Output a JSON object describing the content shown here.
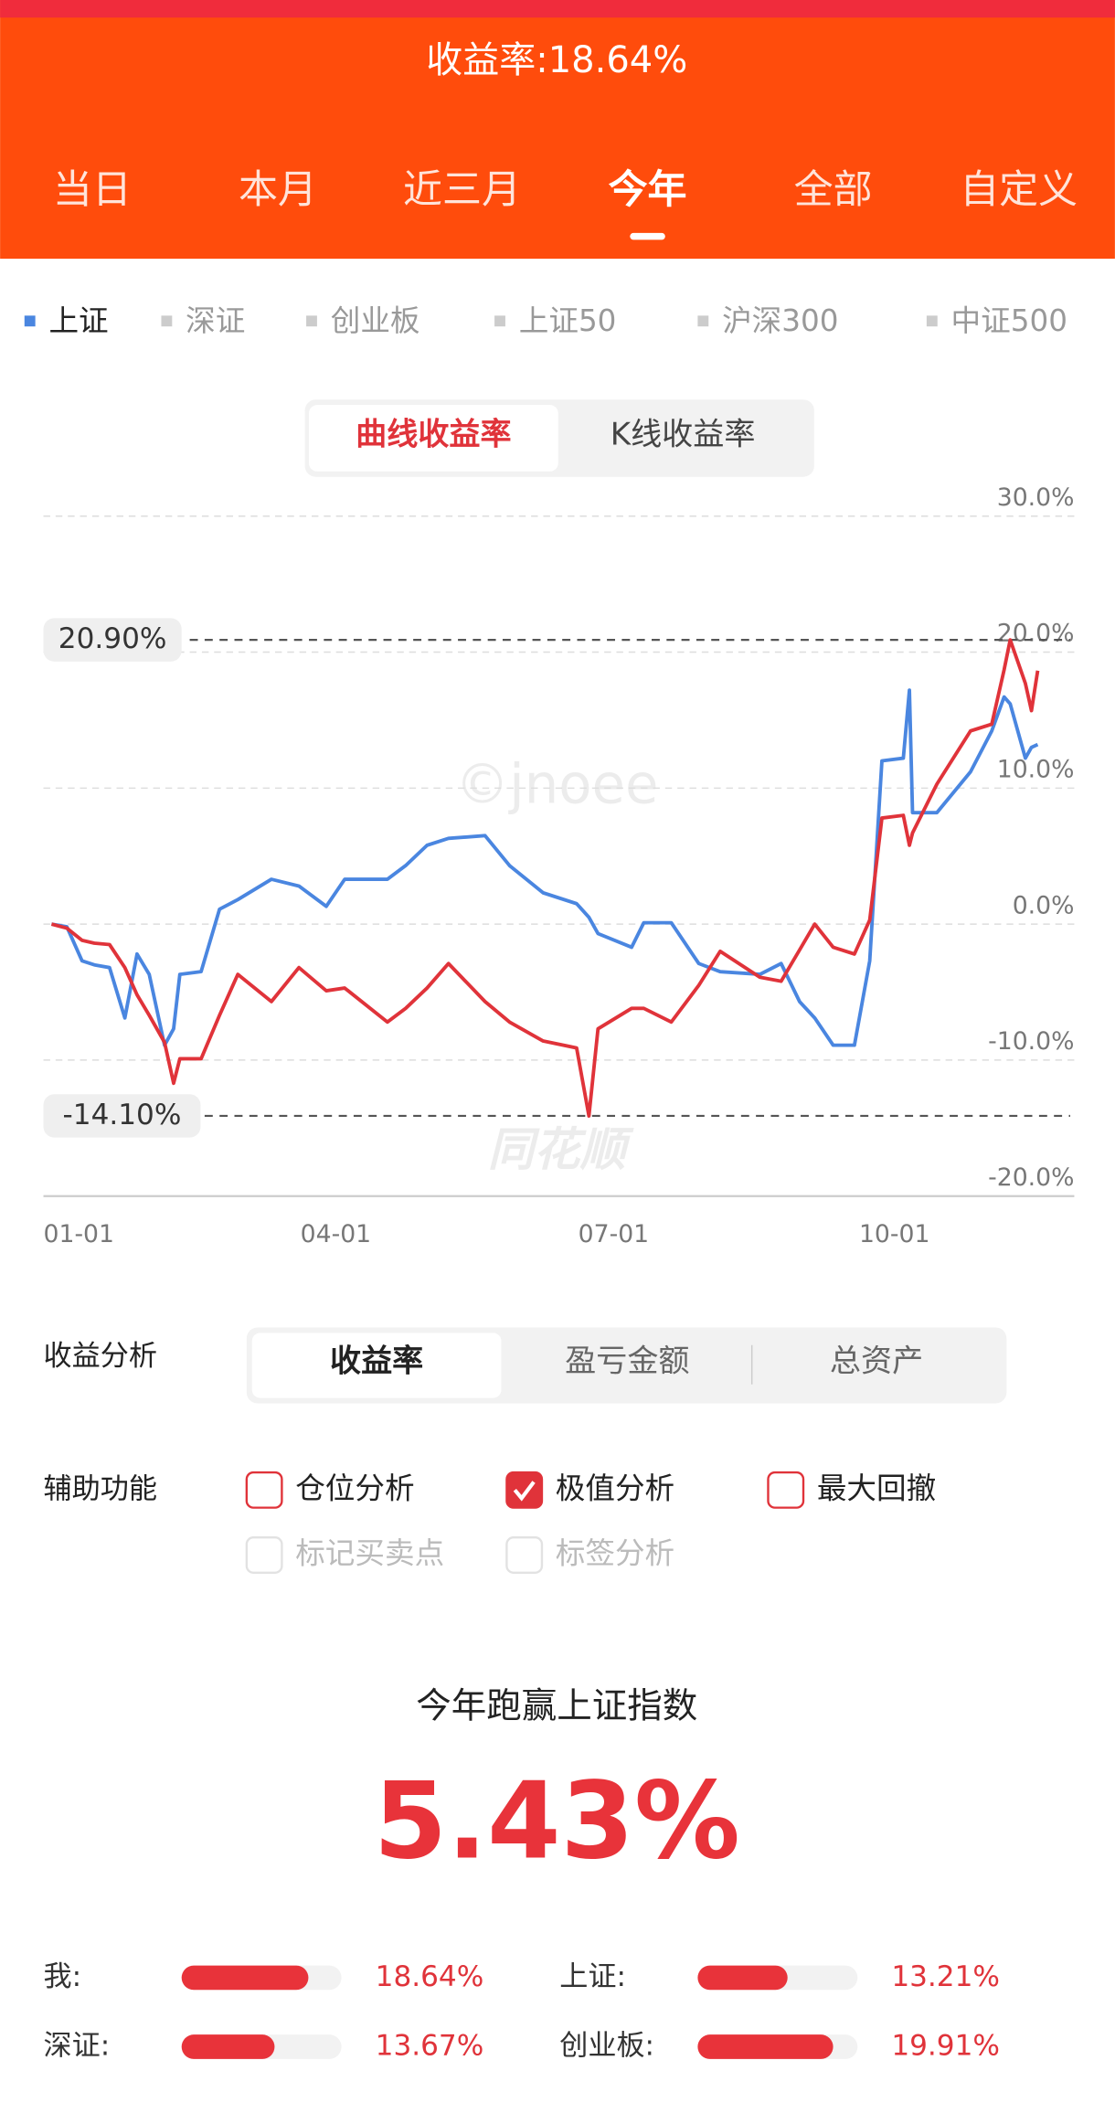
{
  "header": {
    "title": "收益率:18.64%",
    "tabs": [
      "当日",
      "本月",
      "近三月",
      "今年",
      "全部",
      "自定义"
    ],
    "active_tab": 3
  },
  "indices": {
    "items": [
      "上证",
      "深证",
      "创业板",
      "上证50",
      "沪深300",
      "中证500"
    ],
    "active": 0
  },
  "chart_toggle": {
    "items": [
      "曲线收益率",
      "K线收益率"
    ],
    "active": 0
  },
  "chart_data": {
    "type": "line",
    "watermarks": [
      "©jnoee",
      "同花顺"
    ],
    "x": [
      "01-01",
      "01-06",
      "01-11",
      "01-15",
      "01-20",
      "01-25",
      "01-29",
      "02-02",
      "02-07",
      "02-10",
      "02-12",
      "02-19",
      "02-25",
      "03-03",
      "03-14",
      "03-23",
      "04-01",
      "04-07",
      "04-21",
      "04-27",
      "05-04",
      "05-11",
      "05-23",
      "05-31",
      "06-11",
      "06-22",
      "06-26",
      "06-29",
      "07-10",
      "07-14",
      "07-23",
      "08-01",
      "08-08",
      "08-21",
      "08-28",
      "09-03",
      "09-08",
      "09-14",
      "09-21",
      "09-26",
      "09-30",
      "10-07",
      "10-09",
      "10-10",
      "10-18",
      "10-29",
      "11-05",
      "11-09",
      "11-11",
      "11-16",
      "11-18",
      "11-20"
    ],
    "series": [
      {
        "name": "上证",
        "color": "#4a86e0",
        "values": [
          0,
          -0.2,
          -2.7,
          -3.0,
          -3.2,
          -6.9,
          -2.2,
          -3.7,
          -8.9,
          -7.7,
          -3.7,
          -3.5,
          1.1,
          1.8,
          3.3,
          2.8,
          1.3,
          3.3,
          3.3,
          4.3,
          5.8,
          6.3,
          6.5,
          4.3,
          2.3,
          1.5,
          0.5,
          -0.7,
          -1.7,
          0.1,
          0.1,
          -2.9,
          -3.5,
          -3.7,
          -2.9,
          -5.7,
          -6.9,
          -8.9,
          -8.9,
          -2.7,
          12.0,
          12.2,
          17.2,
          8.2,
          8.2,
          11.2,
          14.2,
          16.7,
          16.2,
          12.2,
          13.0,
          13.21
        ]
      },
      {
        "color": "#e0333a",
        "values": [
          0,
          -0.3,
          -1.2,
          -1.4,
          -1.5,
          -3.2,
          -5.2,
          -6.7,
          -8.7,
          -11.7,
          -9.9,
          -9.9,
          -6.7,
          -3.7,
          -5.7,
          -3.2,
          -4.9,
          -4.7,
          -7.2,
          -6.2,
          -4.7,
          -2.9,
          -5.7,
          -7.2,
          -8.6,
          -9.1,
          -14.1,
          -7.7,
          -6.2,
          -6.2,
          -7.2,
          -4.5,
          -2.0,
          -3.9,
          -4.2,
          -1.9,
          0,
          -1.7,
          -2.2,
          0.3,
          7.8,
          8.0,
          5.8,
          6.7,
          10.3,
          14.2,
          14.7,
          18.7,
          20.9,
          17.7,
          15.7,
          18.64
        ]
      }
    ],
    "xlim": [
      "01-01",
      "12-02"
    ],
    "xticks": [
      "01-01",
      "04-01",
      "07-01",
      "10-01"
    ],
    "ylim": [
      -20,
      30
    ],
    "yticks": [
      {
        "value": -20,
        "label": "-20.0%"
      },
      {
        "value": -10,
        "label": "-10.0%"
      },
      {
        "value": 0,
        "label": "0.0%"
      },
      {
        "value": 10,
        "label": "10.0%"
      },
      {
        "value": 20,
        "label": "20.0%"
      },
      {
        "value": 30,
        "label": "30.0%"
      }
    ],
    "grid": true,
    "markers": [
      {
        "value": 20.9,
        "label": "20.90%"
      },
      {
        "value": -14.1,
        "label": "-14.10%"
      }
    ]
  },
  "analysis": {
    "label": "收益分析",
    "options": [
      "收益率",
      "盈亏金额",
      "总资产"
    ],
    "active": 0
  },
  "aux": {
    "label": "辅助功能",
    "options": [
      {
        "label": "仓位分析",
        "checked": false,
        "disabled": false
      },
      {
        "label": "极值分析",
        "checked": true,
        "disabled": false
      },
      {
        "label": "最大回撤",
        "checked": false,
        "disabled": false
      },
      {
        "label": "标记买卖点",
        "checked": false,
        "disabled": true
      },
      {
        "label": "标签分析",
        "checked": false,
        "disabled": true
      }
    ]
  },
  "summary": {
    "title": "今年跑赢上证指数",
    "value": "5.43%"
  },
  "comparison": {
    "xlim": [
      0,
      23.5
    ],
    "items": [
      {
        "label": "我:",
        "value": 18.64,
        "value_label": "18.64%"
      },
      {
        "label": "上证:",
        "value": 13.21,
        "value_label": "13.21%"
      },
      {
        "label": "深证:",
        "value": 13.67,
        "value_label": "13.67%"
      },
      {
        "label": "创业板:",
        "value": 19.91,
        "value_label": "19.91%"
      }
    ]
  }
}
